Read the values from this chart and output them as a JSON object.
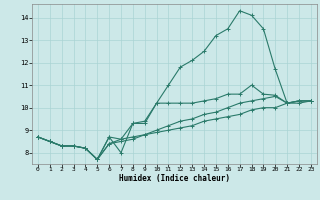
{
  "title": "",
  "xlabel": "Humidex (Indice chaleur)",
  "bg_color": "#cce8e8",
  "line_color": "#2a7a6a",
  "grid_color": "#aad4d4",
  "xlim": [
    -0.5,
    23.5
  ],
  "ylim": [
    7.5,
    14.6
  ],
  "xticks": [
    0,
    1,
    2,
    3,
    4,
    5,
    6,
    7,
    8,
    9,
    10,
    11,
    12,
    13,
    14,
    15,
    16,
    17,
    18,
    19,
    20,
    21,
    22,
    23
  ],
  "yticks": [
    8,
    9,
    10,
    11,
    12,
    13,
    14
  ],
  "line1_x": [
    0,
    1,
    2,
    3,
    4,
    5,
    6,
    7,
    8,
    9,
    10,
    11,
    12,
    13,
    14,
    15,
    16,
    17,
    18,
    19,
    20,
    21,
    22,
    23
  ],
  "line1_y": [
    8.7,
    8.5,
    8.3,
    8.3,
    8.2,
    7.7,
    8.7,
    8.0,
    9.3,
    9.4,
    10.2,
    11.0,
    11.8,
    12.1,
    12.5,
    13.2,
    13.5,
    14.3,
    14.1,
    13.5,
    11.7,
    10.2,
    10.2,
    10.3
  ],
  "line2_x": [
    0,
    1,
    2,
    3,
    4,
    5,
    6,
    7,
    8,
    9,
    10,
    11,
    12,
    13,
    14,
    15,
    16,
    17,
    18,
    19,
    20,
    21,
    22,
    23
  ],
  "line2_y": [
    8.7,
    8.5,
    8.3,
    8.3,
    8.2,
    7.7,
    8.7,
    8.6,
    9.3,
    9.3,
    10.2,
    10.2,
    10.2,
    10.2,
    10.3,
    10.4,
    10.6,
    10.6,
    11.0,
    10.6,
    10.55,
    10.2,
    10.3,
    10.3
  ],
  "line3_x": [
    0,
    1,
    2,
    3,
    4,
    5,
    6,
    7,
    8,
    9,
    10,
    11,
    12,
    13,
    14,
    15,
    16,
    17,
    18,
    19,
    20,
    21,
    22,
    23
  ],
  "line3_y": [
    8.7,
    8.5,
    8.3,
    8.3,
    8.2,
    7.7,
    8.4,
    8.6,
    8.7,
    8.8,
    9.0,
    9.2,
    9.4,
    9.5,
    9.7,
    9.8,
    10.0,
    10.2,
    10.3,
    10.4,
    10.5,
    10.2,
    10.3,
    10.3
  ],
  "line4_x": [
    0,
    1,
    2,
    3,
    4,
    5,
    6,
    7,
    8,
    9,
    10,
    11,
    12,
    13,
    14,
    15,
    16,
    17,
    18,
    19,
    20,
    21,
    22,
    23
  ],
  "line4_y": [
    8.7,
    8.5,
    8.3,
    8.3,
    8.2,
    7.7,
    8.4,
    8.5,
    8.6,
    8.8,
    8.9,
    9.0,
    9.1,
    9.2,
    9.4,
    9.5,
    9.6,
    9.7,
    9.9,
    10.0,
    10.0,
    10.2,
    10.3,
    10.3
  ]
}
